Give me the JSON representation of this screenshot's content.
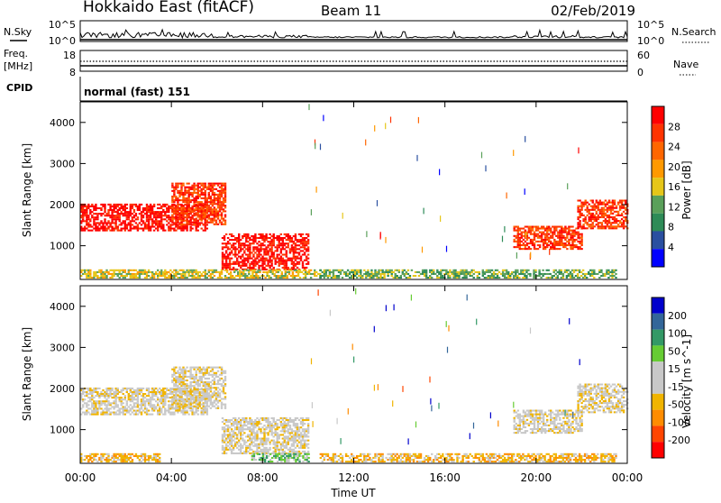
{
  "header": {
    "title": "Hokkaido East (fitACF)",
    "beam": "Beam 11",
    "date": "02/Feb/2019"
  },
  "top_panels": {
    "nsky_label": "N.Sky",
    "nsky_ticks": [
      "10^5",
      "10^0"
    ],
    "nsearch_label": "N.Search",
    "nsearch_ticks": [
      "10^5",
      "10^0"
    ],
    "freq_label_1": "Freq.",
    "freq_label_2": "[MHz]",
    "freq_ticks": [
      "18",
      "8"
    ],
    "nave_label": "Nave",
    "nave_ticks": [
      "60",
      "0"
    ],
    "cpid_label": "CPID",
    "cpid_text": "normal (fast) 151"
  },
  "colors": {
    "power_scale": [
      "#0000ff",
      "#2a4fa0",
      "#2e8b57",
      "#5aa05a",
      "#e6c619",
      "#ff9900",
      "#ff6600",
      "#ff3300",
      "#ff0000"
    ],
    "velocity_scale": [
      "#ff0000",
      "#ff4500",
      "#ff8c00",
      "#f0b400",
      "#c8c8c8",
      "#c8c8c8",
      "#66cc33",
      "#339966",
      "#336699",
      "#0000cc"
    ]
  },
  "chart_data": [
    {
      "type": "heatmap",
      "name": "power",
      "ylabel": "Slant Range [km]",
      "ylim": [
        180,
        4500
      ],
      "yticks": [
        "1000",
        "2000",
        "3000",
        "4000"
      ],
      "xlim": [
        "00:00",
        "24:00"
      ],
      "xticks": [
        "00:00",
        "04:00",
        "08:00",
        "12:00",
        "16:00",
        "20:00",
        "00:00"
      ],
      "colorbar_label": "Power [dB]",
      "colorbar_ticks": [
        "4",
        "8",
        "12",
        "16",
        "20",
        "24",
        "28"
      ],
      "regions": [
        {
          "t0": 0.0,
          "t1": 5.6,
          "r0": 1350,
          "r1": 2000,
          "level": 8
        },
        {
          "t0": 4.0,
          "t1": 6.4,
          "r0": 1500,
          "r1": 2500,
          "level": 7
        },
        {
          "t0": 6.2,
          "t1": 10.0,
          "r0": 400,
          "r1": 1300,
          "level": 8
        },
        {
          "t0": 0.0,
          "t1": 10.5,
          "r0": 200,
          "r1": 400,
          "level": 4
        },
        {
          "t0": 10.5,
          "t1": 23.5,
          "r0": 200,
          "r1": 420,
          "level": 3
        },
        {
          "t0": 19.0,
          "t1": 22.0,
          "r0": 900,
          "r1": 1450,
          "level": 7
        },
        {
          "t0": 21.8,
          "t1": 24.0,
          "r0": 1400,
          "r1": 2100,
          "level": 7
        }
      ]
    },
    {
      "type": "heatmap",
      "name": "velocity",
      "ylabel": "Slant Range [km]",
      "ylim": [
        180,
        4500
      ],
      "yticks": [
        "1000",
        "2000",
        "3000",
        "4000"
      ],
      "xlim": [
        "00:00",
        "24:00"
      ],
      "xticks": [
        "00:00",
        "04:00",
        "08:00",
        "12:00",
        "16:00",
        "20:00",
        "00:00"
      ],
      "xlabel": "Time UT",
      "colorbar_label": "Velocity [m s^-1]",
      "colorbar_ticks": [
        "200",
        "100",
        "50",
        "15",
        "-15",
        "-50",
        "-100",
        "-200"
      ],
      "regions": [
        {
          "t0": 0.0,
          "t1": 5.6,
          "r0": 1350,
          "r1": 2000,
          "level": 4
        },
        {
          "t0": 4.0,
          "t1": 6.4,
          "r0": 1500,
          "r1": 2500,
          "level": 4
        },
        {
          "t0": 6.2,
          "t1": 10.0,
          "r0": 400,
          "r1": 1300,
          "level": 4
        },
        {
          "t0": 0.0,
          "t1": 3.5,
          "r0": 200,
          "r1": 400,
          "level": 3
        },
        {
          "t0": 7.5,
          "t1": 10.0,
          "r0": 200,
          "r1": 420,
          "level": 6
        },
        {
          "t0": 10.5,
          "t1": 23.5,
          "r0": 200,
          "r1": 420,
          "level": 3
        },
        {
          "t0": 19.0,
          "t1": 22.0,
          "r0": 900,
          "r1": 1450,
          "level": 4
        },
        {
          "t0": 21.8,
          "t1": 24.0,
          "r0": 1400,
          "r1": 2100,
          "level": 4
        }
      ]
    }
  ]
}
